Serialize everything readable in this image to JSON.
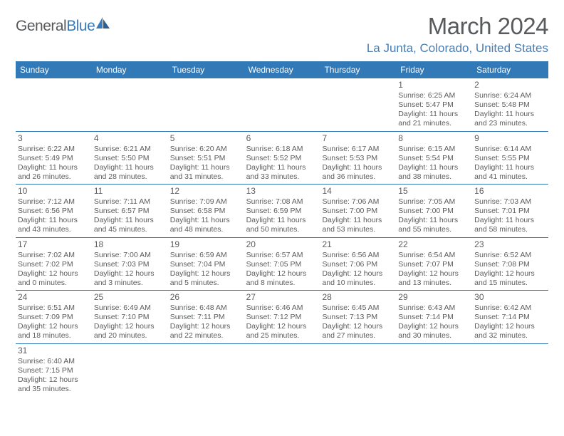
{
  "logo": {
    "text1": "General",
    "text2": "Blue"
  },
  "title": "March 2024",
  "location": "La Junta, Colorado, United States",
  "colors": {
    "header_bg": "#3279b7",
    "text": "#5b5c5e",
    "title": "#595a5c",
    "location": "#4a7db0",
    "border": "#3279b7"
  },
  "dow": [
    "Sunday",
    "Monday",
    "Tuesday",
    "Wednesday",
    "Thursday",
    "Friday",
    "Saturday"
  ],
  "weeks": [
    [
      null,
      null,
      null,
      null,
      null,
      {
        "n": "1",
        "sr": "6:25 AM",
        "ss": "5:47 PM",
        "dh": "11",
        "dm": "21"
      },
      {
        "n": "2",
        "sr": "6:24 AM",
        "ss": "5:48 PM",
        "dh": "11",
        "dm": "23"
      }
    ],
    [
      {
        "n": "3",
        "sr": "6:22 AM",
        "ss": "5:49 PM",
        "dh": "11",
        "dm": "26"
      },
      {
        "n": "4",
        "sr": "6:21 AM",
        "ss": "5:50 PM",
        "dh": "11",
        "dm": "28"
      },
      {
        "n": "5",
        "sr": "6:20 AM",
        "ss": "5:51 PM",
        "dh": "11",
        "dm": "31"
      },
      {
        "n": "6",
        "sr": "6:18 AM",
        "ss": "5:52 PM",
        "dh": "11",
        "dm": "33"
      },
      {
        "n": "7",
        "sr": "6:17 AM",
        "ss": "5:53 PM",
        "dh": "11",
        "dm": "36"
      },
      {
        "n": "8",
        "sr": "6:15 AM",
        "ss": "5:54 PM",
        "dh": "11",
        "dm": "38"
      },
      {
        "n": "9",
        "sr": "6:14 AM",
        "ss": "5:55 PM",
        "dh": "11",
        "dm": "41"
      }
    ],
    [
      {
        "n": "10",
        "sr": "7:12 AM",
        "ss": "6:56 PM",
        "dh": "11",
        "dm": "43"
      },
      {
        "n": "11",
        "sr": "7:11 AM",
        "ss": "6:57 PM",
        "dh": "11",
        "dm": "45"
      },
      {
        "n": "12",
        "sr": "7:09 AM",
        "ss": "6:58 PM",
        "dh": "11",
        "dm": "48"
      },
      {
        "n": "13",
        "sr": "7:08 AM",
        "ss": "6:59 PM",
        "dh": "11",
        "dm": "50"
      },
      {
        "n": "14",
        "sr": "7:06 AM",
        "ss": "7:00 PM",
        "dh": "11",
        "dm": "53"
      },
      {
        "n": "15",
        "sr": "7:05 AM",
        "ss": "7:00 PM",
        "dh": "11",
        "dm": "55"
      },
      {
        "n": "16",
        "sr": "7:03 AM",
        "ss": "7:01 PM",
        "dh": "11",
        "dm": "58"
      }
    ],
    [
      {
        "n": "17",
        "sr": "7:02 AM",
        "ss": "7:02 PM",
        "dh": "12",
        "dm": "0"
      },
      {
        "n": "18",
        "sr": "7:00 AM",
        "ss": "7:03 PM",
        "dh": "12",
        "dm": "3"
      },
      {
        "n": "19",
        "sr": "6:59 AM",
        "ss": "7:04 PM",
        "dh": "12",
        "dm": "5"
      },
      {
        "n": "20",
        "sr": "6:57 AM",
        "ss": "7:05 PM",
        "dh": "12",
        "dm": "8"
      },
      {
        "n": "21",
        "sr": "6:56 AM",
        "ss": "7:06 PM",
        "dh": "12",
        "dm": "10"
      },
      {
        "n": "22",
        "sr": "6:54 AM",
        "ss": "7:07 PM",
        "dh": "12",
        "dm": "13"
      },
      {
        "n": "23",
        "sr": "6:52 AM",
        "ss": "7:08 PM",
        "dh": "12",
        "dm": "15"
      }
    ],
    [
      {
        "n": "24",
        "sr": "6:51 AM",
        "ss": "7:09 PM",
        "dh": "12",
        "dm": "18"
      },
      {
        "n": "25",
        "sr": "6:49 AM",
        "ss": "7:10 PM",
        "dh": "12",
        "dm": "20"
      },
      {
        "n": "26",
        "sr": "6:48 AM",
        "ss": "7:11 PM",
        "dh": "12",
        "dm": "22"
      },
      {
        "n": "27",
        "sr": "6:46 AM",
        "ss": "7:12 PM",
        "dh": "12",
        "dm": "25"
      },
      {
        "n": "28",
        "sr": "6:45 AM",
        "ss": "7:13 PM",
        "dh": "12",
        "dm": "27"
      },
      {
        "n": "29",
        "sr": "6:43 AM",
        "ss": "7:14 PM",
        "dh": "12",
        "dm": "30"
      },
      {
        "n": "30",
        "sr": "6:42 AM",
        "ss": "7:14 PM",
        "dh": "12",
        "dm": "32"
      }
    ],
    [
      {
        "n": "31",
        "sr": "6:40 AM",
        "ss": "7:15 PM",
        "dh": "12",
        "dm": "35"
      },
      null,
      null,
      null,
      null,
      null,
      null
    ]
  ],
  "labels": {
    "sunrise": "Sunrise:",
    "sunset": "Sunset:",
    "daylight1": "Daylight:",
    "hours": "hours",
    "and": "and",
    "minutes": "minutes."
  }
}
